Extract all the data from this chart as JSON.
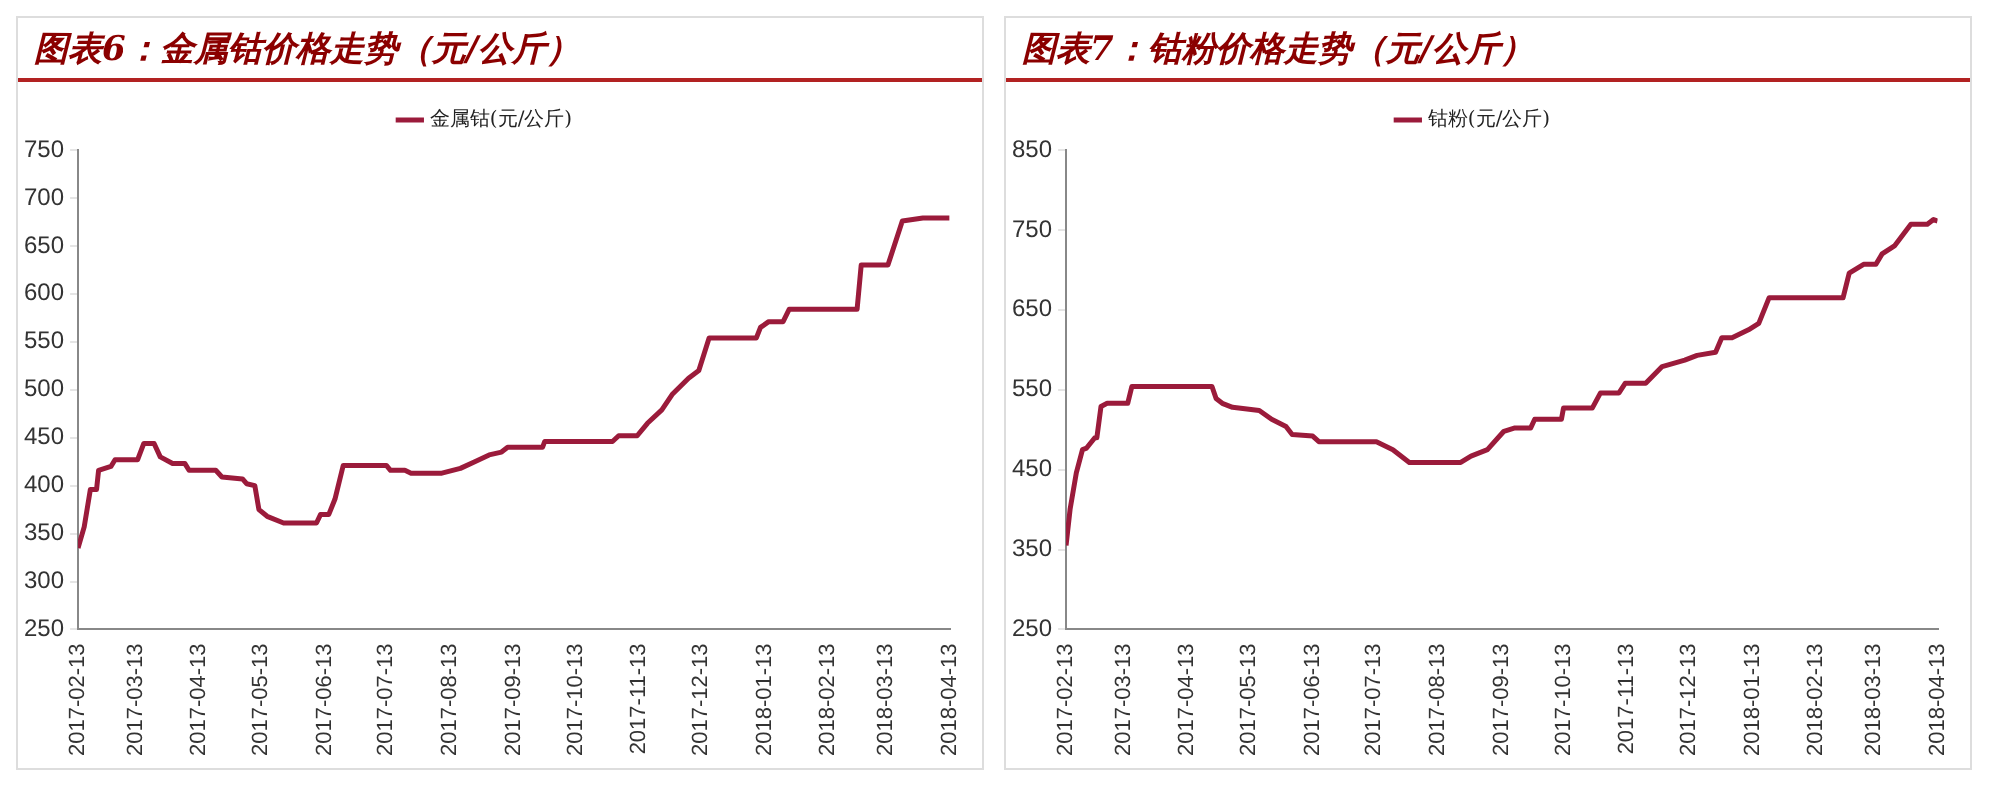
{
  "chart_data": [
    {
      "type": "line",
      "title": "图表6：金属钴价格走势（元/公斤）",
      "legend": "top",
      "grid": false,
      "ylim": [
        250,
        750
      ],
      "yticks": [
        250,
        300,
        350,
        400,
        450,
        500,
        550,
        600,
        650,
        700,
        750
      ],
      "xlim": [
        "2017-02-13",
        "2018-04-13"
      ],
      "xticks": [
        "2017-02-13",
        "2017-03-13",
        "2017-04-13",
        "2017-05-13",
        "2017-06-13",
        "2017-07-13",
        "2017-08-13",
        "2017-09-13",
        "2017-10-13",
        "2017-11-13",
        "2017-12-13",
        "2018-01-13",
        "2018-02-13",
        "2018-03-13",
        "2018-04-13"
      ],
      "series": [
        {
          "name": "金属钴(元/公斤)",
          "color": "#9b1b3b",
          "x": [
            "2017-02-13",
            "2017-02-16",
            "2017-02-19",
            "2017-02-22",
            "2017-02-23",
            "2017-03-01",
            "2017-03-03",
            "2017-03-14",
            "2017-03-17",
            "2017-03-22",
            "2017-03-25",
            "2017-03-31",
            "2017-04-06",
            "2017-04-08",
            "2017-04-21",
            "2017-04-24",
            "2017-05-04",
            "2017-05-06",
            "2017-05-10",
            "2017-05-12",
            "2017-05-16",
            "2017-05-24",
            "2017-06-09",
            "2017-06-11",
            "2017-06-15",
            "2017-06-18",
            "2017-06-22",
            "2017-07-13",
            "2017-07-15",
            "2017-07-22",
            "2017-07-25",
            "2017-08-09",
            "2017-08-18",
            "2017-08-25",
            "2017-09-01",
            "2017-09-07",
            "2017-09-10",
            "2017-09-27",
            "2017-09-28",
            "2017-10-31",
            "2017-11-03",
            "2017-11-12",
            "2017-11-17",
            "2017-11-24",
            "2017-11-29",
            "2017-12-07",
            "2017-12-12",
            "2017-12-17",
            "2018-01-09",
            "2018-01-11",
            "2018-01-15",
            "2018-01-22",
            "2018-01-25",
            "2018-02-27",
            "2018-03-01",
            "2018-03-14",
            "2018-03-21",
            "2018-03-31",
            "2018-04-13"
          ],
          "values": [
            335,
            357,
            396,
            396,
            416,
            420,
            427,
            427,
            444,
            444,
            430,
            423,
            423,
            416,
            416,
            409,
            407,
            402,
            400,
            375,
            368,
            361,
            361,
            370,
            370,
            386,
            421,
            421,
            416,
            416,
            413,
            413,
            418,
            425,
            432,
            435,
            440,
            440,
            446,
            446,
            452,
            452,
            465,
            479,
            495,
            512,
            520,
            554,
            554,
            565,
            571,
            571,
            584,
            584,
            630,
            630,
            676,
            679,
            679
          ]
        }
      ]
    },
    {
      "type": "line",
      "title": "图表7：钴粉价格走势（元/公斤）",
      "legend": "top",
      "grid": false,
      "ylim": [
        250,
        850
      ],
      "yticks": [
        250,
        350,
        450,
        550,
        650,
        750,
        850
      ],
      "xlim": [
        "2017-02-13",
        "2018-04-13"
      ],
      "xticks": [
        "2017-02-13",
        "2017-03-13",
        "2017-04-13",
        "2017-05-13",
        "2017-06-13",
        "2017-07-13",
        "2017-08-13",
        "2017-09-13",
        "2017-10-13",
        "2017-11-13",
        "2017-12-13",
        "2018-01-13",
        "2018-02-13",
        "2018-03-13",
        "2018-04-13"
      ],
      "series": [
        {
          "name": "钴粉(元/公斤)",
          "color": "#9b1b3b",
          "x": [
            "2017-02-13",
            "2017-02-15",
            "2017-02-18",
            "2017-02-21",
            "2017-02-23",
            "2017-02-27",
            "2017-02-28",
            "2017-03-02",
            "2017-03-05",
            "2017-03-15",
            "2017-03-17",
            "2017-04-25",
            "2017-04-27",
            "2017-04-30",
            "2017-05-05",
            "2017-05-18",
            "2017-05-24",
            "2017-05-31",
            "2017-06-03",
            "2017-06-13",
            "2017-06-16",
            "2017-07-14",
            "2017-07-22",
            "2017-07-30",
            "2017-08-24",
            "2017-08-29",
            "2017-09-06",
            "2017-09-14",
            "2017-09-19",
            "2017-09-27",
            "2017-09-29",
            "2017-10-12",
            "2017-10-13",
            "2017-10-27",
            "2017-10-31",
            "2017-11-09",
            "2017-11-12",
            "2017-11-22",
            "2017-11-30",
            "2017-12-11",
            "2017-12-17",
            "2017-12-26",
            "2017-12-29",
            "2018-01-03",
            "2018-01-11",
            "2018-01-16",
            "2018-01-21",
            "2018-02-26",
            "2018-03-01",
            "2018-03-08",
            "2018-03-14",
            "2018-03-17",
            "2018-03-23",
            "2018-03-31",
            "2018-04-08",
            "2018-04-11",
            "2018-04-13"
          ],
          "values": [
            355,
            401,
            446,
            475,
            477,
            490,
            490,
            529,
            533,
            533,
            554,
            554,
            539,
            533,
            528,
            524,
            513,
            504,
            494,
            492,
            485,
            485,
            475,
            459,
            459,
            467,
            475,
            498,
            502,
            502,
            513,
            513,
            527,
            527,
            546,
            546,
            558,
            558,
            579,
            587,
            593,
            597,
            615,
            615,
            625,
            633,
            665,
            665,
            696,
            707,
            707,
            720,
            730,
            757,
            757,
            763,
            761
          ]
        }
      ]
    }
  ]
}
